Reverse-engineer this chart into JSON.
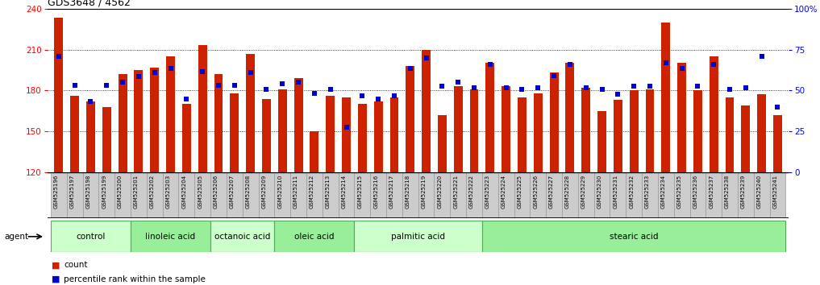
{
  "title": "GDS3648 / 4562",
  "samples": [
    "GSM525196",
    "GSM525197",
    "GSM525198",
    "GSM525199",
    "GSM525200",
    "GSM525201",
    "GSM525202",
    "GSM525203",
    "GSM525204",
    "GSM525205",
    "GSM525206",
    "GSM525207",
    "GSM525208",
    "GSM525209",
    "GSM525210",
    "GSM525211",
    "GSM525212",
    "GSM525213",
    "GSM525214",
    "GSM525215",
    "GSM525216",
    "GSM525217",
    "GSM525218",
    "GSM525219",
    "GSM525220",
    "GSM525221",
    "GSM525222",
    "GSM525223",
    "GSM525224",
    "GSM525225",
    "GSM525226",
    "GSM525227",
    "GSM525228",
    "GSM525229",
    "GSM525230",
    "GSM525231",
    "GSM525232",
    "GSM525233",
    "GSM525234",
    "GSM525235",
    "GSM525236",
    "GSM525237",
    "GSM525238",
    "GSM525239",
    "GSM525240",
    "GSM525241"
  ],
  "bar_values": [
    233,
    176,
    172,
    168,
    192,
    195,
    197,
    205,
    170,
    213,
    192,
    178,
    207,
    174,
    181,
    189,
    150,
    176,
    175,
    170,
    172,
    175,
    198,
    210,
    162,
    183,
    181,
    200,
    183,
    175,
    178,
    193,
    200,
    182,
    165,
    173,
    180,
    181,
    230,
    200,
    180,
    205,
    175,
    169,
    177,
    162
  ],
  "pct_values_left_scale": [
    205,
    184,
    172,
    184,
    186,
    190,
    193,
    196,
    174,
    194,
    184,
    184,
    193,
    181,
    185,
    186,
    178,
    181,
    153,
    176,
    174,
    176,
    196,
    204,
    183,
    186,
    182,
    199,
    182,
    181,
    182,
    191,
    199,
    182,
    181,
    177,
    183,
    183,
    200,
    196,
    183,
    199,
    181,
    182,
    205,
    168
  ],
  "groups": [
    {
      "label": "control",
      "start": 0,
      "end": 4
    },
    {
      "label": "linoleic acid",
      "start": 5,
      "end": 9
    },
    {
      "label": "octanoic acid",
      "start": 10,
      "end": 13
    },
    {
      "label": "oleic acid",
      "start": 14,
      "end": 18
    },
    {
      "label": "palmitic acid",
      "start": 19,
      "end": 26
    },
    {
      "label": "stearic acid",
      "start": 27,
      "end": 45
    }
  ],
  "bar_color": "#cc2200",
  "pct_color": "#0000cc",
  "ylim_left": [
    120,
    240
  ],
  "yticks_left": [
    120,
    150,
    180,
    210,
    240
  ],
  "ylim_right": [
    0,
    100
  ],
  "yticks_right": [
    0,
    25,
    50,
    75,
    100
  ],
  "group_colors": [
    "#ccffcc",
    "#99ee99"
  ],
  "group_border": "#55aa55",
  "tick_cell_color": "#cccccc",
  "tick_cell_border": "#999999",
  "agent_label": "agent",
  "legend_count": "count",
  "legend_percentile": "percentile rank within the sample"
}
